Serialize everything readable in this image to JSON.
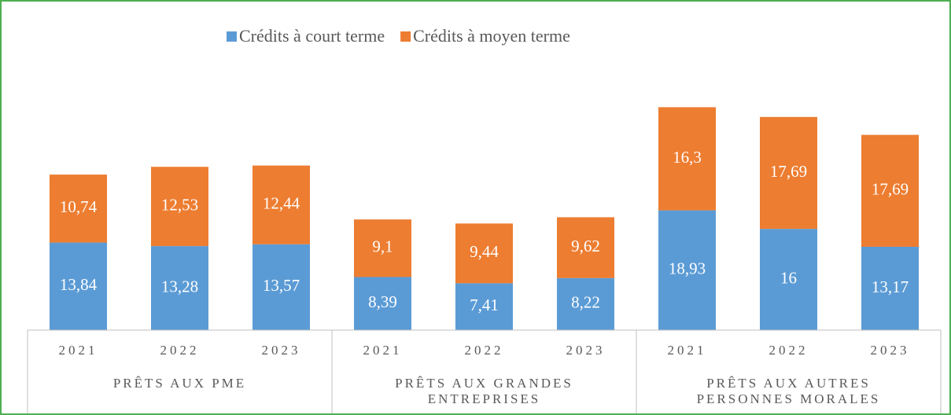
{
  "chart_data": {
    "type": "stacked_bar",
    "groups": [
      "PRÊTS AUX PME",
      "PRÊTS AUX GRANDES ENTREPRISES",
      "PRÊTS AUX AUTRES PERSONNES MORALES"
    ],
    "categories": [
      "2021",
      "2022",
      "2023",
      "2021",
      "2022",
      "2023",
      "2021",
      "2022",
      "2023"
    ],
    "series": [
      {
        "name": "Crédits à court terme",
        "color": "#5b9bd5",
        "values": [
          13.84,
          13.28,
          13.57,
          8.39,
          7.41,
          8.22,
          18.93,
          16,
          13.17
        ],
        "value_labels": [
          "13,84",
          "13,28",
          "13,57",
          "8,39",
          "7,41",
          "8,22",
          "18,93",
          "16",
          "13,17"
        ]
      },
      {
        "name": "Crédits à moyen terme",
        "color": "#ed7d31",
        "values": [
          10.74,
          12.53,
          12.44,
          9.1,
          9.44,
          9.62,
          16.3,
          17.69,
          17.69
        ],
        "value_labels": [
          "10,74",
          "12,53",
          "12,44",
          "9,1",
          "9,44",
          "9,62",
          "16,3",
          "17,69",
          "17,69"
        ]
      }
    ],
    "ylim": [
      0,
      40
    ]
  }
}
